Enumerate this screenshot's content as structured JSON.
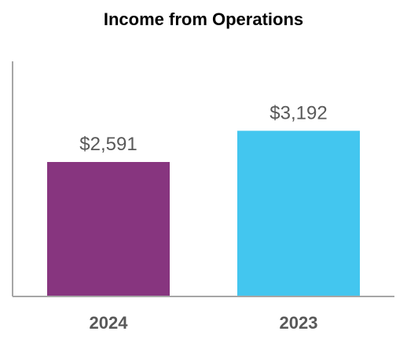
{
  "chart_data": {
    "type": "bar",
    "title": "Income from Operations",
    "xlabel": "",
    "ylabel": "",
    "categories": [
      "2024",
      "2023"
    ],
    "values": [
      2591,
      3192
    ],
    "value_labels": [
      "$2,591",
      "$3,192"
    ],
    "colors": [
      "#87357F",
      "#43C6EF"
    ],
    "ylim": [
      0,
      4500
    ],
    "grid": false,
    "legend": "none"
  }
}
